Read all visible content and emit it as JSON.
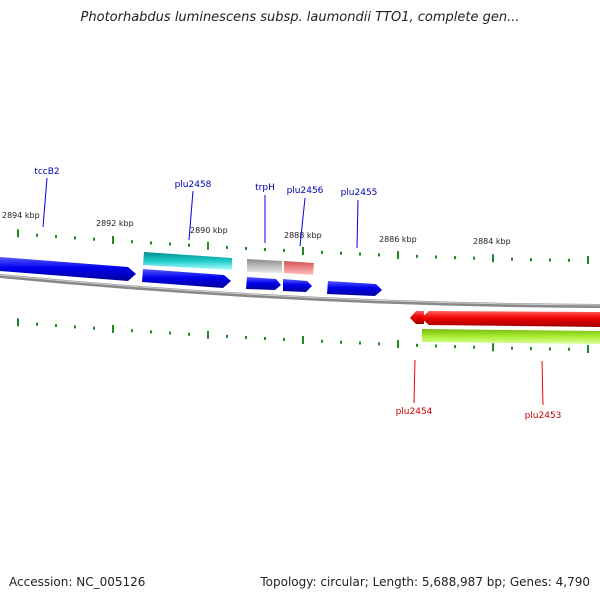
{
  "title": "Photorhabdus luminescens subsp. laumondii TTO1, complete gen...",
  "accession": "Accession: NC_005126",
  "summary": "Topology: circular; Length: 5,688,987 bp; Genes: 4,790",
  "colors": {
    "forward": "#0000ee",
    "reverse": "#ee0000",
    "forward_label": "#0000aa",
    "reverse_label": "#cc0000",
    "tick": "#228822",
    "backbone": "#888888"
  },
  "axis_labels": [
    "2894 kbp",
    "2892 kbp",
    "2890 kbp",
    "2888 kbp",
    "2886 kbp",
    "2884 kbp"
  ],
  "forward_genes": [
    "tccB2",
    "plu2458",
    "trpH",
    "plu2456",
    "plu2455"
  ],
  "reverse_genes": [
    "plu2454",
    "plu2453"
  ],
  "feature_colors": {
    "cyan": "#22cccc",
    "gray": "#aaaaaa",
    "pink": "#ee8888",
    "green": "#aaee33"
  }
}
